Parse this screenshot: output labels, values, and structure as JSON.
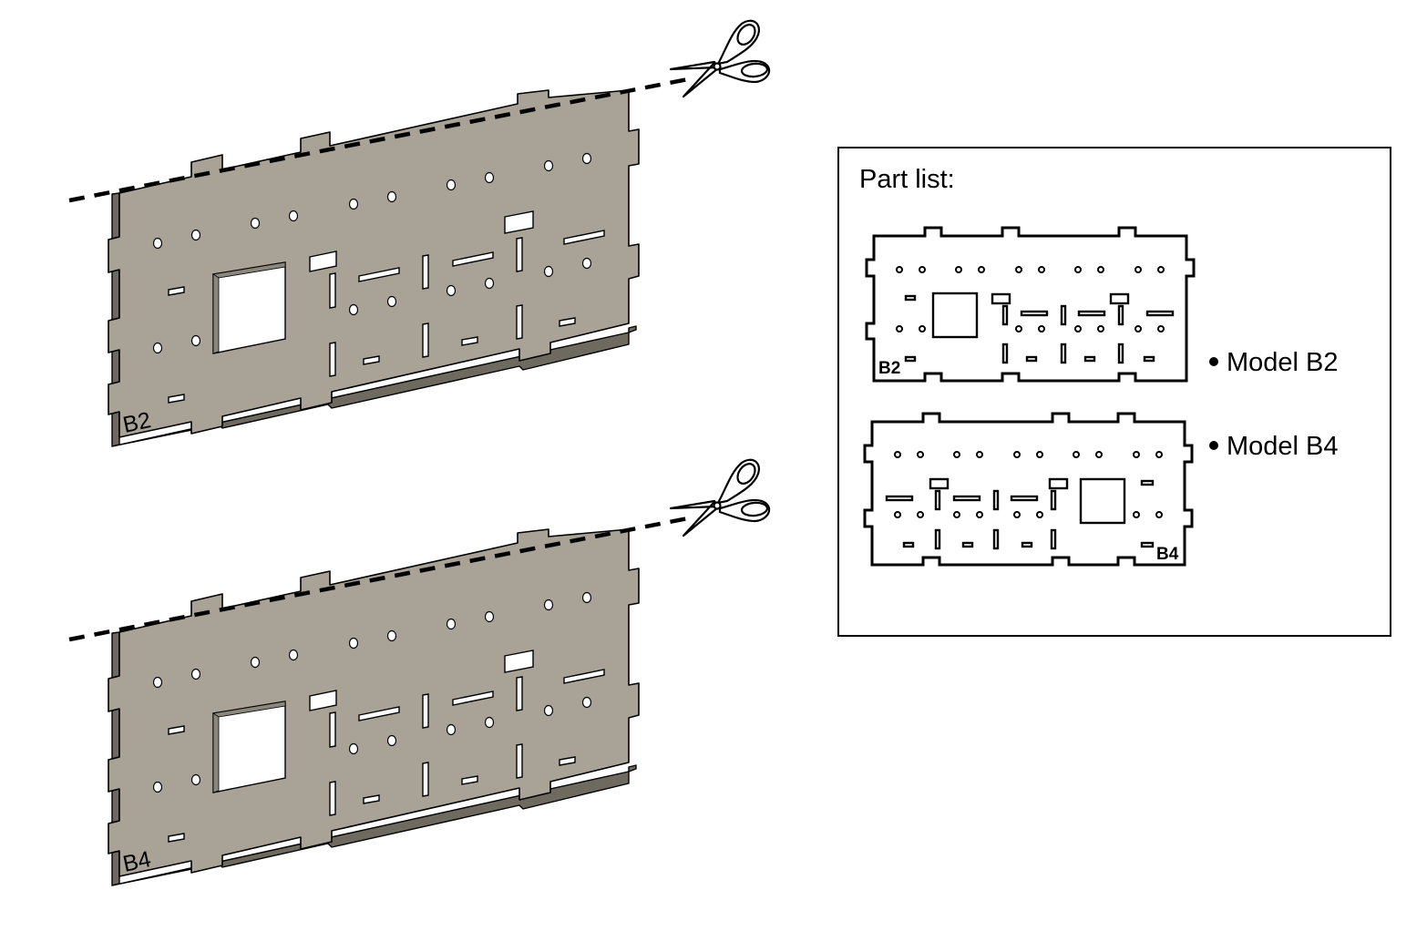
{
  "figure": {
    "plates": [
      {
        "label": "B2"
      },
      {
        "label": "B4"
      }
    ],
    "part_list": {
      "title": "Part list:",
      "items": [
        {
          "part_label": "B2",
          "model_text": "Model B2"
        },
        {
          "part_label": "B4",
          "model_text": "Model B4"
        }
      ]
    },
    "icons": [
      "scissors-icon",
      "bullet-icon"
    ],
    "colors": {
      "plate_face": "#a8a297",
      "plate_edge": "#6f6a60",
      "line": "#000000",
      "background": "#ffffff"
    }
  }
}
